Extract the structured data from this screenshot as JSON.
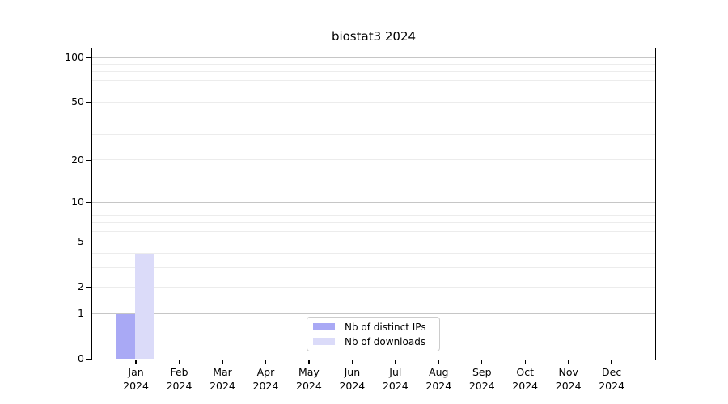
{
  "chart_data": {
    "type": "bar",
    "title": "biostat3 2024",
    "y_scale": "log1p",
    "ylim": [
      0,
      100
    ],
    "grid": true,
    "categories": [
      "Jan",
      "Feb",
      "Mar",
      "Apr",
      "May",
      "Jun",
      "Jul",
      "Aug",
      "Sep",
      "Oct",
      "Nov",
      "Dec"
    ],
    "x_tick_labels": [
      [
        "Jan",
        "2024"
      ],
      [
        "Feb",
        "2024"
      ],
      [
        "Mar",
        "2024"
      ],
      [
        "Apr",
        "2024"
      ],
      [
        "May",
        "2024"
      ],
      [
        "Jun",
        "2024"
      ],
      [
        "Jul",
        "2024"
      ],
      [
        "Aug",
        "2024"
      ],
      [
        "Sep",
        "2024"
      ],
      [
        "Oct",
        "2024"
      ],
      [
        "Nov",
        "2024"
      ],
      [
        "Dec",
        "2024"
      ]
    ],
    "y_ticks": [
      {
        "value": 0,
        "label": "0"
      },
      {
        "value": 1,
        "label": "1"
      },
      {
        "value": 2,
        "label": "2"
      },
      {
        "value": 5,
        "label": "5"
      },
      {
        "value": 10,
        "label": "10"
      },
      {
        "value": 20,
        "label": "20"
      },
      {
        "value": 50,
        "label": "50"
      },
      {
        "value": 100,
        "label": "100"
      }
    ],
    "gridlines": {
      "major_values": [
        1,
        10,
        100
      ],
      "minor_values": [
        2,
        3,
        4,
        5,
        6,
        7,
        8,
        9,
        20,
        30,
        40,
        50,
        60,
        70,
        80,
        90
      ]
    },
    "series": [
      {
        "name": "Nb of distinct IPs",
        "color": "#a9a9f5",
        "values": [
          1,
          0,
          0,
          0,
          0,
          0,
          0,
          0,
          0,
          0,
          0,
          0
        ]
      },
      {
        "name": "Nb of downloads",
        "color": "#dbdbf9",
        "values": [
          4,
          0,
          0,
          0,
          0,
          0,
          0,
          0,
          0,
          0,
          0,
          0
        ]
      }
    ],
    "legend": {
      "position": "inside-bottom-center",
      "entries": [
        "Nb of distinct IPs",
        "Nb of downloads"
      ]
    },
    "colors": {
      "axis": "#000000",
      "major_grid": "#c6c6c6",
      "minor_grid": "#ececec",
      "background": "#ffffff"
    }
  }
}
